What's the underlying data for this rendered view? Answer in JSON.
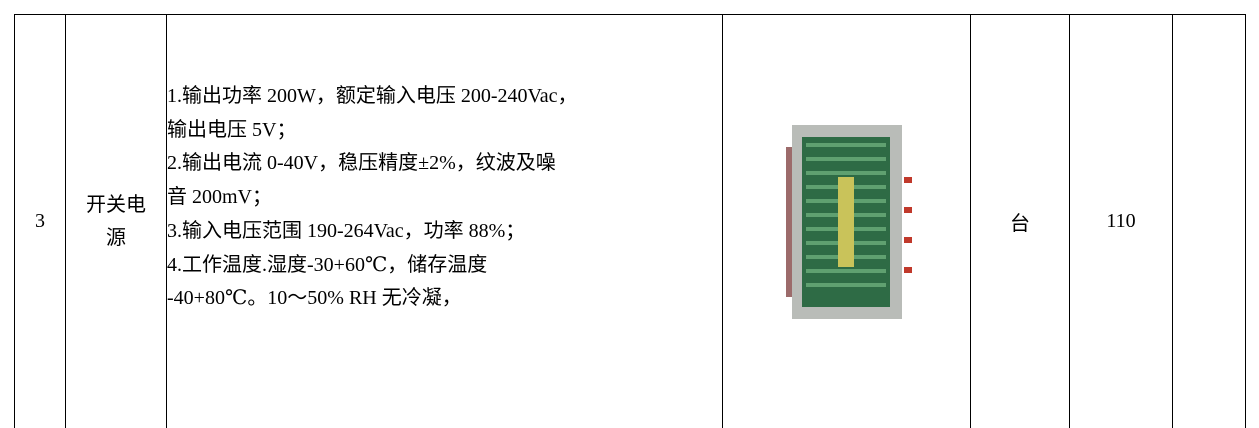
{
  "table": {
    "rows": [
      {
        "index": "3",
        "name": "开关电源",
        "spec": [
          "1.输出功率 200W，额定输入电压 200-240Vac，",
          "输出电压 5V；",
          "2.输出电流 0-40V，稳压精度±2%，纹波及噪",
          "音 200mV；",
          "3.输入电压范围 190-264Vac，功率 88%；",
          "4.工作温度.湿度-30+60℃，储存温度",
          "-40+80℃。10～50% RH 无冷凝，"
        ],
        "unit": "台",
        "quantity": 110
      }
    ]
  }
}
